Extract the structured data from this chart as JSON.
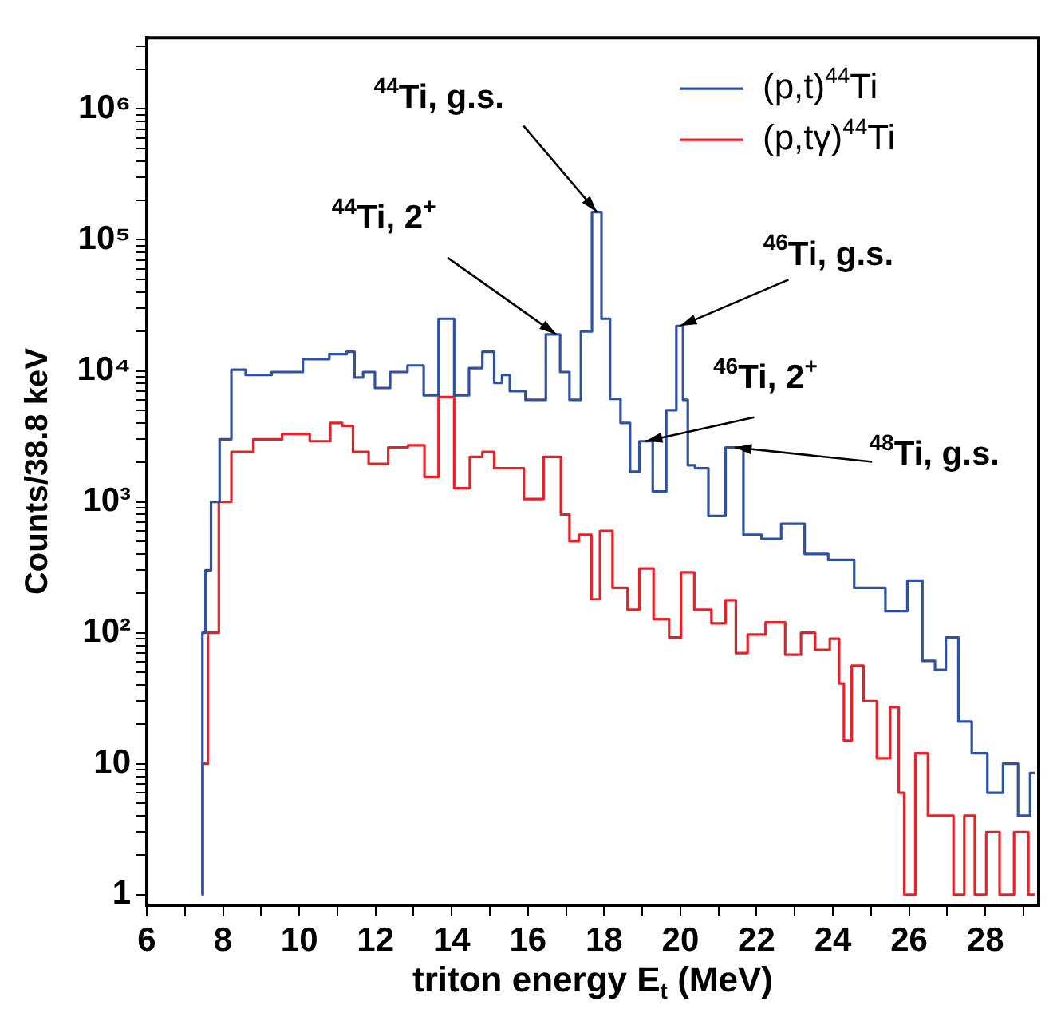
{
  "chart_data": {
    "type": "step",
    "xlabel": "triton energy E$_{t}$ (MeV)",
    "ylabel": "Counts/38.8 keV",
    "log": "y",
    "marker": "none",
    "legend": "top right",
    "xlim": [
      6,
      29.4
    ],
    "xticks": [
      6,
      {
        "value": 7,
        "label": null
      },
      8,
      {
        "value": 9,
        "label": null
      },
      10,
      {
        "value": 11,
        "label": null
      },
      12,
      {
        "value": 13,
        "label": null
      },
      14,
      {
        "value": 15,
        "label": null
      },
      16,
      {
        "value": 17,
        "label": null
      },
      18,
      {
        "value": 19,
        "label": null
      },
      20,
      {
        "value": 21,
        "label": null
      },
      22,
      {
        "value": 23,
        "label": null
      },
      24,
      {
        "value": 25,
        "label": null
      },
      26,
      {
        "value": 27,
        "label": null
      },
      28,
      {
        "value": 29,
        "label": null
      }
    ],
    "ylim": [
      0.83,
      3500000
    ],
    "yticks": [
      1,
      {
        "value": 2,
        "label": null
      },
      {
        "value": 3,
        "label": null
      },
      {
        "value": 4,
        "label": null
      },
      {
        "value": 5,
        "label": null
      },
      {
        "value": 6,
        "label": null
      },
      {
        "value": 7,
        "label": null
      },
      {
        "value": 8,
        "label": null
      },
      {
        "value": 9,
        "label": null
      },
      10,
      {
        "value": 20,
        "label": null
      },
      {
        "value": 30,
        "label": null
      },
      {
        "value": 40,
        "label": null
      },
      {
        "value": 50,
        "label": null
      },
      {
        "value": 60,
        "label": null
      },
      {
        "value": 70,
        "label": null
      },
      {
        "value": 80,
        "label": null
      },
      {
        "value": 90,
        "label": null
      },
      {
        "value": 100,
        "label": "10²"
      },
      {
        "value": 200,
        "label": null
      },
      {
        "value": 300,
        "label": null
      },
      {
        "value": 400,
        "label": null
      },
      {
        "value": 500,
        "label": null
      },
      {
        "value": 600,
        "label": null
      },
      {
        "value": 700,
        "label": null
      },
      {
        "value": 800,
        "label": null
      },
      {
        "value": 900,
        "label": null
      },
      {
        "value": 1000,
        "label": "10³"
      },
      {
        "value": 2000,
        "label": null
      },
      {
        "value": 3000,
        "label": null
      },
      {
        "value": 4000,
        "label": null
      },
      {
        "value": 5000,
        "label": null
      },
      {
        "value": 6000,
        "label": null
      },
      {
        "value": 7000,
        "label": null
      },
      {
        "value": 8000,
        "label": null
      },
      {
        "value": 9000,
        "label": null
      },
      {
        "value": 10000,
        "label": "10⁴"
      },
      {
        "value": 20000,
        "label": null
      },
      {
        "value": 30000,
        "label": null
      },
      {
        "value": 40000,
        "label": null
      },
      {
        "value": 50000,
        "label": null
      },
      {
        "value": 60000,
        "label": null
      },
      {
        "value": 70000,
        "label": null
      },
      {
        "value": 80000,
        "label": null
      },
      {
        "value": 90000,
        "label": null
      },
      {
        "value": 100000,
        "label": "10⁵"
      },
      {
        "value": 200000,
        "label": null
      },
      {
        "value": 300000,
        "label": null
      },
      {
        "value": 400000,
        "label": null
      },
      {
        "value": 500000,
        "label": null
      },
      {
        "value": 600000,
        "label": null
      },
      {
        "value": 700000,
        "label": null
      },
      {
        "value": 800000,
        "label": null
      },
      {
        "value": 900000,
        "label": null
      },
      {
        "value": 1000000,
        "label": "10⁶"
      },
      {
        "value": 2000000,
        "label": null
      },
      {
        "value": 3000000,
        "label": null
      }
    ],
    "series": [
      {
        "name": "(p,t)$^{44}$Ti",
        "color": "#3050a0",
        "x": [
          7.44,
          7.48,
          7.6,
          7.77,
          8.05,
          8.39,
          8.8,
          9.75,
          10.44,
          11.14,
          11.35,
          11.55,
          11.8,
          12.17,
          12.6,
          13.08,
          13.45,
          13.86,
          14.27,
          14.64,
          14.97,
          15.26,
          15.38,
          15.67,
          16.2,
          16.74,
          16.95,
          17.23,
          17.55,
          17.81,
          18.05,
          18.26,
          18.6,
          18.76,
          19.09,
          19.46,
          19.8,
          19.99,
          20.15,
          20.24,
          20.53,
          20.94,
          21.43,
          21.88,
          22.38,
          22.91,
          23.61,
          24.15,
          24.97,
          25.79,
          26.12,
          26.58,
          26.78,
          27.15,
          27.44,
          27.85,
          28.26,
          28.67,
          29.05,
          29.3
        ],
        "values": [
          1,
          100,
          300,
          1000,
          3000,
          10200,
          9300,
          9800,
          12300,
          13400,
          14000,
          8900,
          9800,
          7400,
          9800,
          11000,
          6500,
          25000,
          6500,
          10500,
          14000,
          8100,
          9300,
          7000,
          6000,
          19000,
          9800,
          6000,
          20000,
          163000,
          25000,
          6100,
          4000,
          1700,
          2900,
          1200,
          5000,
          22000,
          6000,
          1900,
          1800,
          780,
          2600,
          560,
          520,
          680,
          400,
          360,
          220,
          146,
          250,
          61,
          52,
          92,
          21,
          12,
          6,
          10,
          4,
          8.5
        ]
      },
      {
        "name": "(p,tγ)$^{44}$Ti",
        "color": "#e82028",
        "x": [
          7.46,
          7.48,
          7.73,
          8.05,
          8.39,
          9.2,
          9.9,
          10.65,
          10.98,
          11.27,
          11.55,
          12.09,
          12.58,
          13.12,
          13.45,
          13.86,
          14.27,
          14.68,
          14.93,
          15.3,
          15.67,
          16.12,
          16.7,
          17.03,
          17.15,
          17.52,
          17.81,
          17.97,
          18.47,
          18.76,
          19.09,
          19.5,
          19.91,
          20.12,
          20.61,
          21.02,
          21.35,
          21.56,
          21.97,
          22.5,
          23,
          23.33,
          23.74,
          24.1,
          24.23,
          24.35,
          24.64,
          24.97,
          25.34,
          25.67,
          25.79,
          25.96,
          26.37,
          26.62,
          27.03,
          27.3,
          27.6,
          27.85,
          28.2,
          28.55,
          28.96,
          29.3
        ],
        "values": [
          1,
          10,
          100,
          1000,
          2400,
          3000,
          3300,
          2900,
          4000,
          3800,
          2400,
          1950,
          2600,
          2700,
          1550,
          6300,
          1270,
          2200,
          2400,
          1800,
          1800,
          1050,
          2200,
          800,
          500,
          560,
          180,
          600,
          220,
          150,
          310,
          127,
          92,
          290,
          150,
          118,
          177,
          70,
          97,
          120,
          68,
          100,
          74,
          90,
          41,
          15,
          56,
          30,
          11,
          27,
          6,
          1,
          12,
          4,
          4,
          1,
          4,
          1,
          3,
          1,
          3,
          1
        ]
      }
    ],
    "annotations": [
      {
        "text": "$^{44}$Ti, g.s.",
        "x": 17.81,
        "y": 163000
      },
      {
        "text": "$^{44}$Ti, 2$^{+}$",
        "x": 16.74,
        "y": 19000
      },
      {
        "text": "$^{46}$Ti, g.s.",
        "x": 19.99,
        "y": 22000
      },
      {
        "text": "$^{46}$Ti, 2$^{+}$",
        "x": 19.09,
        "y": 2900
      },
      {
        "text": "$^{48}$Ti, g.s.",
        "x": 21.43,
        "y": 2600
      }
    ]
  }
}
